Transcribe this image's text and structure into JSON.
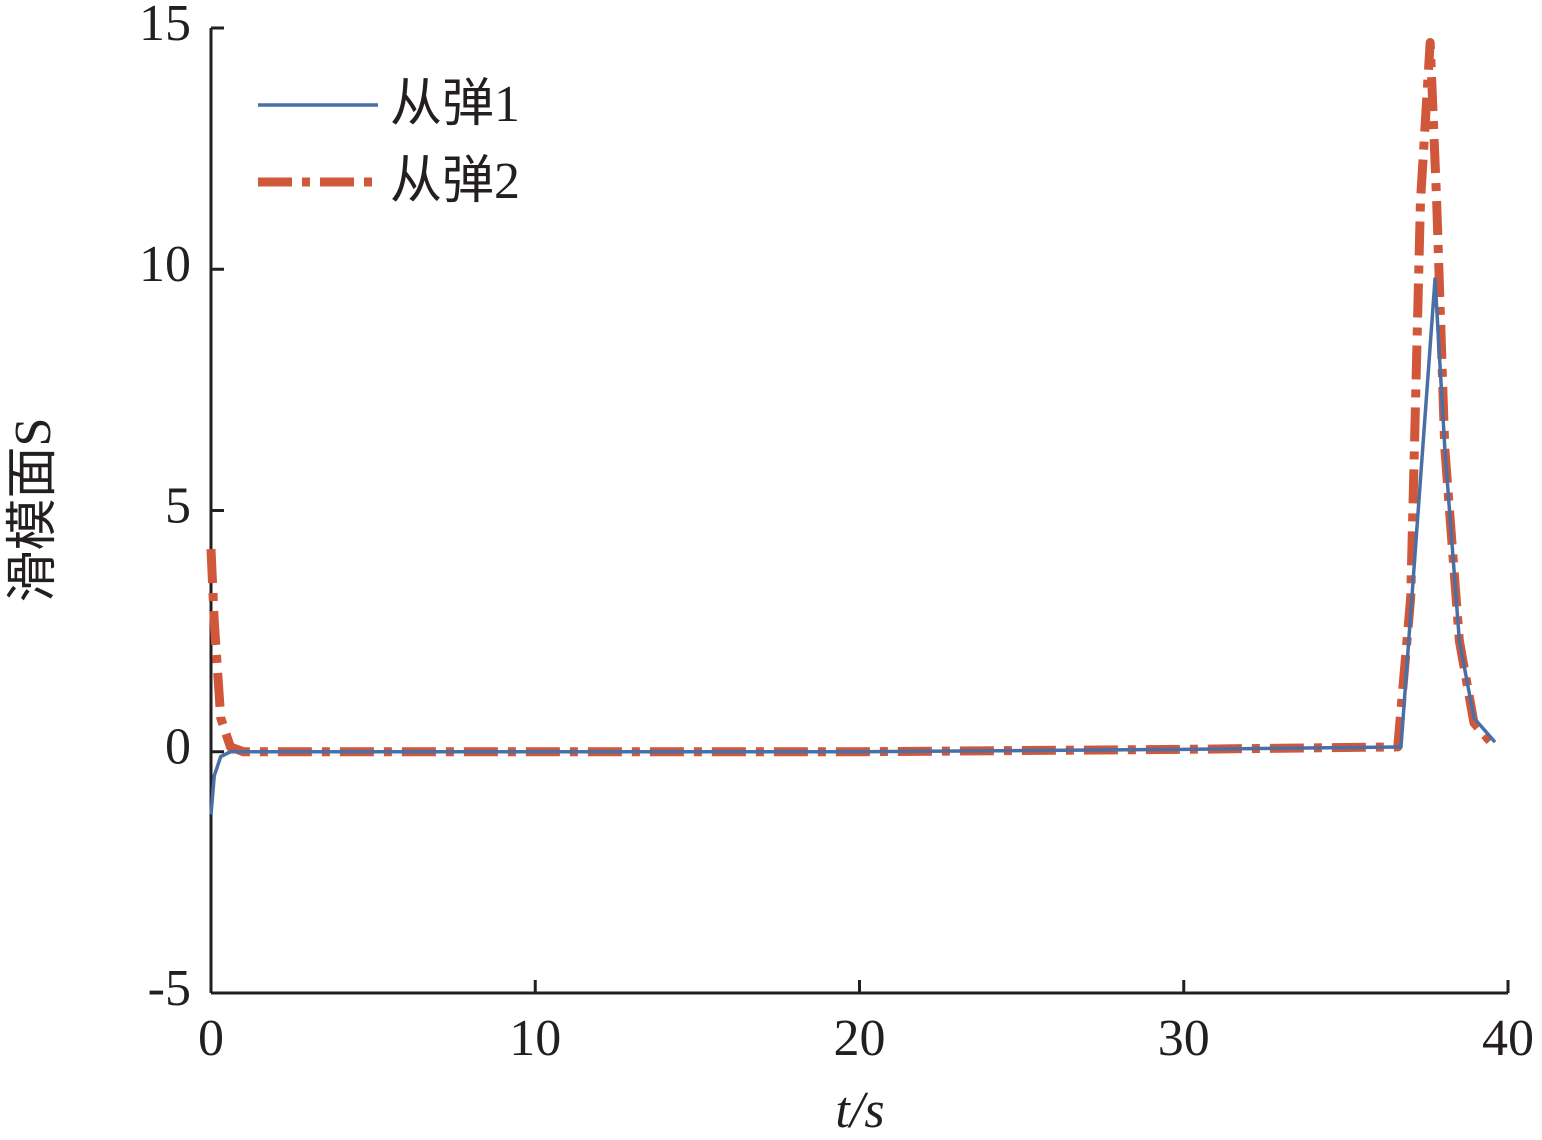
{
  "chart_data": {
    "type": "line",
    "xlabel": "t/s",
    "ylabel": "滑模面S",
    "xlim": [
      0,
      40
    ],
    "xticks": [
      0,
      10,
      20,
      30,
      40
    ],
    "ylim": [
      -5,
      15
    ],
    "yticks": [
      -5,
      0,
      5,
      10,
      15
    ],
    "legend": "upper left",
    "series": [
      {
        "name": "从弹1",
        "color": "#4a6fa5",
        "style": "solid",
        "x": [
          0,
          0.1,
          0.3,
          0.6,
          1,
          5,
          10,
          20,
          30,
          36.7,
          37.75,
          38.05,
          38.5,
          38.95,
          39.6
        ],
        "values": [
          -1.3,
          -0.5,
          -0.1,
          0,
          0,
          0,
          0,
          0,
          0.05,
          0.1,
          9.8,
          6.3,
          2.3,
          0.7,
          0.2
        ]
      },
      {
        "name": "从弹2",
        "color": "#d0573a",
        "style": "dashdot",
        "x": [
          0,
          0.1,
          0.3,
          0.6,
          1,
          5,
          10,
          20,
          30,
          36.6,
          37.0,
          37.3,
          37.6,
          37.8,
          38.05,
          38.5,
          38.95,
          39.6
        ],
        "values": [
          4.2,
          2.7,
          0.7,
          0.1,
          0,
          0,
          0,
          0,
          0.05,
          0.1,
          3.2,
          11.4,
          14.7,
          11.4,
          6.3,
          2.3,
          0.6,
          0.1
        ]
      }
    ]
  }
}
